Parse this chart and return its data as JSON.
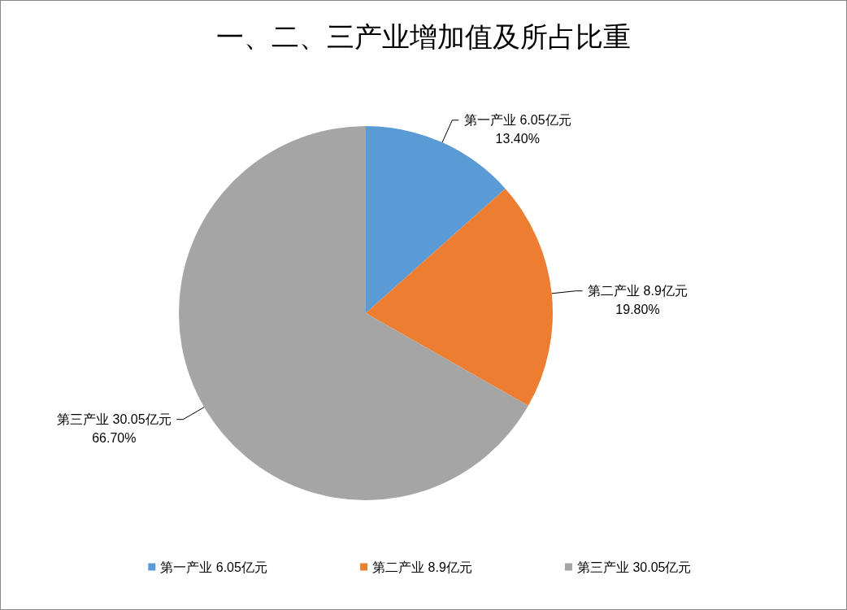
{
  "chart_data": {
    "type": "pie",
    "title": "一、二、三产业增加值及所占比重",
    "categories": [
      "第一产业 6.05亿元",
      "第二产业 8.9亿元",
      "第三产业 30.05亿元"
    ],
    "values": [
      13.4,
      19.8,
      66.7
    ],
    "value_labels": [
      "13.40%",
      "19.80%",
      "66.70%"
    ],
    "colors": [
      "#5b9bd5",
      "#ed7d31",
      "#a5a5a5"
    ],
    "legend": "bottom"
  }
}
